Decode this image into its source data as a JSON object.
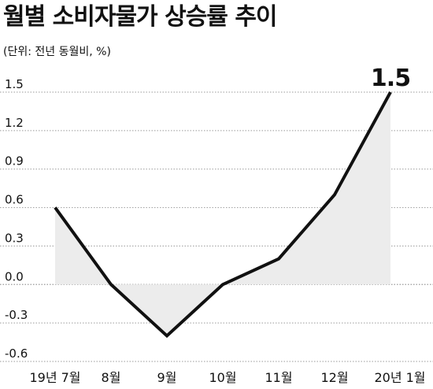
{
  "chart_data": {
    "type": "area",
    "title": "월별 소비자물가 상승률 추이",
    "subtitle": "(단위: 전년 동월비, %)",
    "categories": [
      "19년 7월",
      "8월",
      "9월",
      "10월",
      "11월",
      "12월",
      "20년 1월"
    ],
    "series": [
      {
        "values": [
          0.6,
          0.0,
          -0.4,
          0.0,
          0.2,
          0.7,
          1.5
        ]
      }
    ],
    "yticks": [
      "1.5",
      "1.2",
      "0.9",
      "0.6",
      "0.3",
      "0.0",
      "-0.3",
      "-0.6"
    ],
    "ylim": [
      -0.6,
      1.5
    ],
    "annotation": {
      "text": "1.5",
      "category": "20년 1월",
      "value": 1.5
    },
    "grid": true,
    "colors": {
      "line": "#111111",
      "fill": "#ececec",
      "grid": "#9a9a9a"
    }
  }
}
